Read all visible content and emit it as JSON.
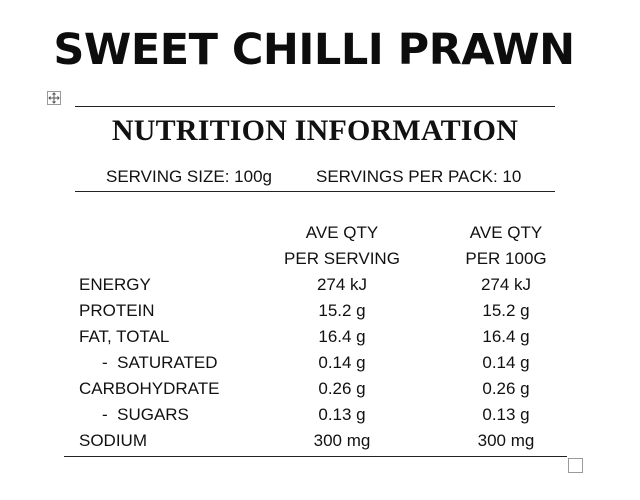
{
  "product": {
    "title": "SWEET CHILLI PRAWN"
  },
  "panel": {
    "heading": "NUTRITION INFORMATION",
    "serving_size": "SERVING SIZE: 100g",
    "servings_per_pack": "SERVINGS PER PACK: 10",
    "columns": [
      {
        "line1": "AVE QTY",
        "line2": "PER SERVING"
      },
      {
        "line1": "AVE QTY",
        "line2": "PER 100G"
      }
    ],
    "rows": [
      {
        "label": "ENERGY",
        "per_serving": "274 kJ",
        "per_100g": "274 kJ"
      },
      {
        "label": "PROTEIN",
        "per_serving": "15.2 g",
        "per_100g": "15.2 g"
      },
      {
        "label": "FAT, TOTAL",
        "per_serving": "16.4 g",
        "per_100g": "16.4 g"
      },
      {
        "label": "-  SATURATED",
        "per_serving": "0.14 g",
        "per_100g": "0.14 g"
      },
      {
        "label": "CARBOHYDRATE",
        "per_serving": "0.26 g",
        "per_100g": "0.26 g"
      },
      {
        "label": "-  SUGARS",
        "per_serving": "0.13 g",
        "per_100g": "0.13 g"
      },
      {
        "label": "SODIUM",
        "per_serving": "300 mg",
        "per_100g": "300 mg"
      }
    ]
  },
  "icons": {
    "table_move": "move-arrows-icon",
    "table_resize": "resize-square-icon"
  }
}
